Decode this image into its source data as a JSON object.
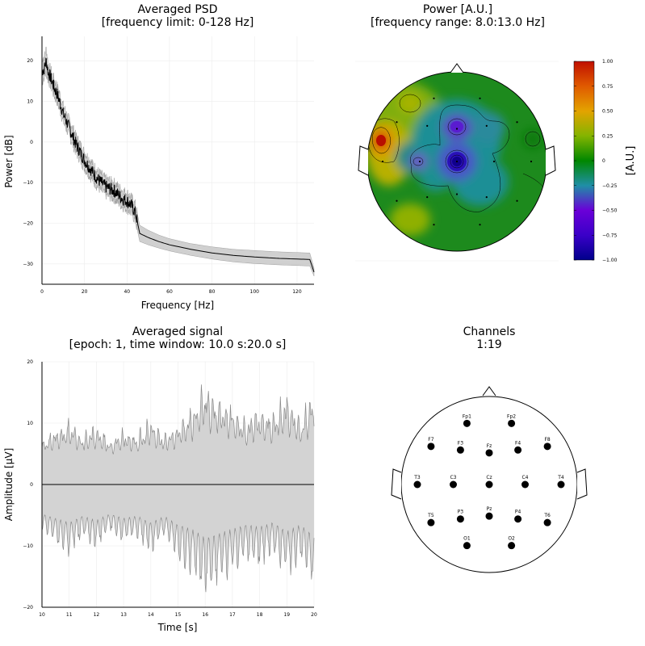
{
  "chart_data": [
    {
      "type": "line",
      "title": "Averaged PSD",
      "subtitle": "[frequency limit: 0-128 Hz]",
      "xlabel": "Frequency [Hz]",
      "ylabel": "Power [dB]",
      "xlim": [
        0,
        128
      ],
      "ylim": [
        -35,
        26
      ],
      "xticks": [
        "0",
        "20",
        "40",
        "60",
        "80",
        "100",
        "120"
      ],
      "yticks": [
        "20",
        "10",
        "0",
        "−10",
        "−20",
        "−30"
      ],
      "grid": true,
      "series": [
        {
          "x": [
            0,
            1,
            2,
            3,
            4,
            5,
            6,
            7,
            8,
            10,
            12,
            14,
            16,
            18,
            20,
            22,
            24,
            26,
            28,
            30,
            32,
            34,
            36,
            38,
            40,
            42,
            44,
            45,
            46,
            50,
            55,
            60,
            70,
            80,
            90,
            100,
            110,
            120,
            126,
            128
          ],
          "values": [
            17.5,
            18.0,
            20.0,
            17.0,
            16.0,
            14.5,
            13.0,
            12.0,
            10.5,
            7.0,
            4.5,
            2.0,
            -0.5,
            -2.5,
            -4.5,
            -6.0,
            -7.5,
            -9.0,
            -10.0,
            -11.0,
            -11.5,
            -12.0,
            -13.0,
            -14.0,
            -14.5,
            -15.5,
            -17.5,
            -20.0,
            -22.5,
            -23.5,
            -24.5,
            -25.3,
            -26.4,
            -27.3,
            -27.9,
            -28.3,
            -28.6,
            -28.8,
            -28.9,
            -32.0
          ],
          "band_lower": [
            14.5,
            16.0,
            17.0,
            15.0,
            14.0,
            12.5,
            11.0,
            10.0,
            8.5,
            5.0,
            2.5,
            0.0,
            -2.5,
            -4.5,
            -6.5,
            -8.0,
            -9.5,
            -11.0,
            -12.0,
            -13.0,
            -13.5,
            -14.0,
            -15.0,
            -16.0,
            -16.5,
            -17.5,
            -19.5,
            -22.0,
            -24.5,
            -25.3,
            -26.1,
            -26.8,
            -27.9,
            -28.8,
            -29.5,
            -29.9,
            -30.2,
            -30.4,
            -30.5,
            -33.0
          ],
          "band_upper": [
            20.5,
            21.0,
            23.0,
            19.0,
            18.0,
            16.5,
            15.0,
            14.0,
            12.5,
            9.0,
            6.5,
            4.0,
            1.5,
            -0.5,
            -2.5,
            -4.0,
            -5.5,
            -7.0,
            -8.0,
            -9.0,
            -9.5,
            -10.0,
            -11.0,
            -12.0,
            -12.5,
            -13.5,
            -15.5,
            -18.0,
            -20.5,
            -21.7,
            -22.9,
            -23.8,
            -25.0,
            -25.8,
            -26.4,
            -26.7,
            -27.0,
            -27.2,
            -27.3,
            -31.0
          ]
        }
      ]
    },
    {
      "type": "heatmap",
      "title": "Power [A.U.]",
      "subtitle": "[frequency range: 8.0:13.0 Hz]",
      "colorbar_label": "[A.U.]",
      "colorbar_range": [
        -1.0,
        1.0
      ],
      "colorbar_ticks": [
        "1.00",
        "0.75",
        "0.50",
        "0.25",
        "0",
        "−0.25",
        "−0.50",
        "−0.75",
        "−1.00"
      ],
      "colormap": [
        "#00008b",
        "#6a00d8",
        "#1f8fa6",
        "#008700",
        "#84b400",
        "#e3a300",
        "#c01000"
      ],
      "blobs": [
        {
          "region": "left-temporal (T3 area)",
          "value": 1.0
        },
        {
          "region": "central (Cz)",
          "value": -0.95
        },
        {
          "region": "midline frontal (Fz)",
          "value": -0.55
        },
        {
          "region": "left central (C3)",
          "value": -0.45
        },
        {
          "region": "left frontal (F7)",
          "value": 0.3
        },
        {
          "region": "left occipital (O1)",
          "value": 0.3
        }
      ]
    },
    {
      "type": "line",
      "title": "Averaged signal",
      "subtitle": "[epoch: 1, time window: 10.0 s:20.0 s]",
      "xlabel": "Time [s]",
      "ylabel": "Amplitude [μV]",
      "xlim": [
        10,
        20
      ],
      "ylim": [
        -20,
        20
      ],
      "xticks": [
        "10",
        "11",
        "12",
        "13",
        "14",
        "15",
        "16",
        "17",
        "18",
        "19",
        "20"
      ],
      "yticks": [
        "20",
        "10",
        "0",
        "−10",
        "−20"
      ],
      "grid": true,
      "series": [
        {
          "name": "mean",
          "x": [
            10,
            20
          ],
          "values": [
            0,
            0
          ]
        },
        {
          "name": "upper envelope",
          "x": [
            10.0,
            10.5,
            11.0,
            11.5,
            12.0,
            12.5,
            13.0,
            13.5,
            14.0,
            14.5,
            15.0,
            15.5,
            16.0,
            16.5,
            17.0,
            17.5,
            18.0,
            18.5,
            19.0,
            19.5,
            20.0
          ],
          "values": [
            8,
            10,
            12,
            9,
            11,
            8,
            10,
            9,
            12,
            9,
            11,
            14,
            19,
            16,
            15,
            12,
            14,
            13,
            17,
            12,
            18
          ]
        },
        {
          "name": "lower envelope",
          "x": [
            10.0,
            10.5,
            11.0,
            11.5,
            12.0,
            12.5,
            13.0,
            13.5,
            14.0,
            14.5,
            15.0,
            15.5,
            16.0,
            16.5,
            17.0,
            17.5,
            18.0,
            18.5,
            19.0,
            19.5,
            20.0
          ],
          "values": [
            -8,
            -10,
            -12,
            -9,
            -11,
            -8,
            -10,
            -9,
            -12,
            -9,
            -13,
            -15,
            -19,
            -17,
            -15,
            -13,
            -14,
            -12,
            -16,
            -13,
            -18
          ]
        }
      ]
    },
    {
      "type": "scatter",
      "title": "Channels",
      "subtitle": "1:19",
      "electrodes": [
        {
          "label": "Fp1",
          "x": -0.31,
          "y": -0.85
        },
        {
          "label": "Fp2",
          "x": 0.31,
          "y": -0.85
        },
        {
          "label": "F7",
          "x": -0.81,
          "y": -0.53
        },
        {
          "label": "F3",
          "x": -0.4,
          "y": -0.48
        },
        {
          "label": "Fz",
          "x": 0.0,
          "y": -0.44
        },
        {
          "label": "F4",
          "x": 0.4,
          "y": -0.48
        },
        {
          "label": "F8",
          "x": 0.81,
          "y": -0.53
        },
        {
          "label": "T3",
          "x": -1.0,
          "y": 0.0
        },
        {
          "label": "C3",
          "x": -0.5,
          "y": 0.0
        },
        {
          "label": "Cz",
          "x": 0.0,
          "y": 0.0
        },
        {
          "label": "C4",
          "x": 0.5,
          "y": 0.0
        },
        {
          "label": "T4",
          "x": 1.0,
          "y": 0.0
        },
        {
          "label": "T5",
          "x": -0.81,
          "y": 0.53
        },
        {
          "label": "P3",
          "x": -0.4,
          "y": 0.48
        },
        {
          "label": "Pz",
          "x": 0.0,
          "y": 0.44
        },
        {
          "label": "P4",
          "x": 0.4,
          "y": 0.48
        },
        {
          "label": "T6",
          "x": 0.81,
          "y": 0.53
        },
        {
          "label": "O1",
          "x": -0.31,
          "y": 0.85
        },
        {
          "label": "O2",
          "x": 0.31,
          "y": 0.85
        }
      ]
    }
  ]
}
